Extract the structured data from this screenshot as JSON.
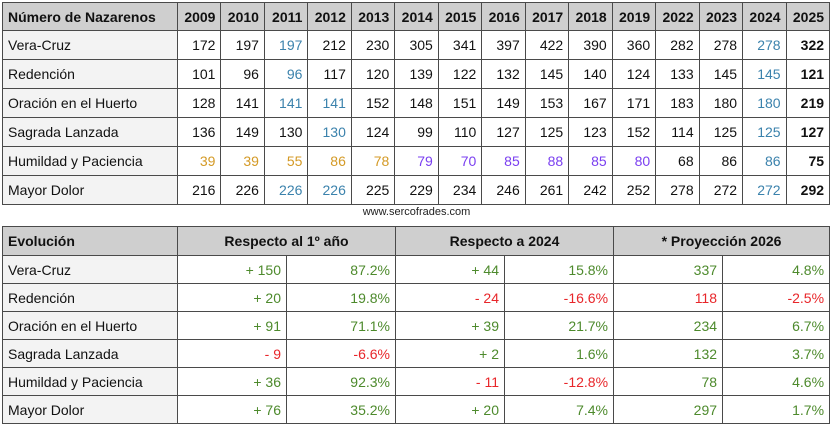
{
  "top_table": {
    "header_label": "Número de Nazarenos",
    "years": [
      "2009",
      "2010",
      "2011",
      "2012",
      "2013",
      "2014",
      "2015",
      "2016",
      "2017",
      "2018",
      "2019",
      "2022",
      "2023",
      "2024",
      "2025"
    ],
    "rows": [
      {
        "name": "Vera-Cruz",
        "values": [
          "172",
          "197",
          "197",
          "212",
          "230",
          "305",
          "341",
          "397",
          "422",
          "390",
          "360",
          "282",
          "278",
          "278",
          "322"
        ],
        "colors": [
          "black",
          "black",
          "blue",
          "black",
          "black",
          "black",
          "black",
          "black",
          "black",
          "black",
          "black",
          "black",
          "black",
          "blue",
          "black"
        ]
      },
      {
        "name": "Redención",
        "values": [
          "101",
          "96",
          "96",
          "117",
          "120",
          "139",
          "122",
          "132",
          "145",
          "140",
          "124",
          "133",
          "145",
          "145",
          "121"
        ],
        "colors": [
          "black",
          "black",
          "blue",
          "black",
          "black",
          "black",
          "black",
          "black",
          "black",
          "black",
          "black",
          "black",
          "black",
          "blue",
          "black"
        ]
      },
      {
        "name": "Oración en el Huerto",
        "values": [
          "128",
          "141",
          "141",
          "141",
          "152",
          "148",
          "151",
          "149",
          "153",
          "167",
          "171",
          "183",
          "180",
          "180",
          "219"
        ],
        "colors": [
          "black",
          "black",
          "blue",
          "blue",
          "black",
          "black",
          "black",
          "black",
          "black",
          "black",
          "black",
          "black",
          "black",
          "blue",
          "black"
        ]
      },
      {
        "name": "Sagrada Lanzada",
        "values": [
          "136",
          "149",
          "130",
          "130",
          "124",
          "99",
          "110",
          "127",
          "125",
          "123",
          "152",
          "114",
          "125",
          "125",
          "127"
        ],
        "colors": [
          "black",
          "black",
          "black",
          "blue",
          "black",
          "black",
          "black",
          "black",
          "black",
          "black",
          "black",
          "black",
          "black",
          "blue",
          "black"
        ]
      },
      {
        "name": "Humildad y Paciencia",
        "values": [
          "39",
          "39",
          "55",
          "86",
          "78",
          "79",
          "70",
          "85",
          "88",
          "85",
          "80",
          "68",
          "86",
          "86",
          "75"
        ],
        "colors": [
          "orange",
          "orange",
          "orange",
          "orange",
          "orange",
          "purple",
          "purple",
          "purple",
          "purple",
          "purple",
          "purple",
          "black",
          "black",
          "blue",
          "black"
        ]
      },
      {
        "name": "Mayor Dolor",
        "values": [
          "216",
          "226",
          "226",
          "226",
          "225",
          "229",
          "234",
          "246",
          "261",
          "242",
          "252",
          "278",
          "272",
          "272",
          "292"
        ],
        "colors": [
          "black",
          "black",
          "blue",
          "blue",
          "black",
          "black",
          "black",
          "black",
          "black",
          "black",
          "black",
          "black",
          "black",
          "blue",
          "black"
        ]
      }
    ]
  },
  "credit": "www.sercofrades.com",
  "bottom_table": {
    "header_label": "Evolución",
    "groups": [
      "Respecto al 1º año",
      "Respecto a 2024",
      "* Proyección 2026"
    ],
    "rows": [
      {
        "name": "Vera-Cruz",
        "values": [
          "+ 150",
          "87.2%",
          "+ 44",
          "15.8%",
          "337",
          "4.8%"
        ],
        "colors": [
          "green",
          "green",
          "green",
          "green",
          "green",
          "green"
        ]
      },
      {
        "name": "Redención",
        "values": [
          "+ 20",
          "19.8%",
          "- 24",
          "-16.6%",
          "118",
          "-2.5%"
        ],
        "colors": [
          "green",
          "green",
          "red",
          "red",
          "red",
          "red"
        ]
      },
      {
        "name": "Oración en el Huerto",
        "values": [
          "+ 91",
          "71.1%",
          "+ 39",
          "21.7%",
          "234",
          "6.7%"
        ],
        "colors": [
          "green",
          "green",
          "green",
          "green",
          "green",
          "green"
        ]
      },
      {
        "name": "Sagrada Lanzada",
        "values": [
          "- 9",
          "-6.6%",
          "+ 2",
          "1.6%",
          "132",
          "3.7%"
        ],
        "colors": [
          "red",
          "red",
          "green",
          "green",
          "green",
          "green"
        ]
      },
      {
        "name": "Humildad y Paciencia",
        "values": [
          "+ 36",
          "92.3%",
          "- 11",
          "-12.8%",
          "78",
          "4.6%"
        ],
        "colors": [
          "green",
          "green",
          "red",
          "red",
          "green",
          "green"
        ]
      },
      {
        "name": "Mayor Dolor",
        "values": [
          "+ 76",
          "35.2%",
          "+ 20",
          "7.4%",
          "297",
          "1.7%"
        ],
        "colors": [
          "green",
          "green",
          "green",
          "green",
          "green",
          "green"
        ]
      }
    ]
  },
  "palette": {
    "blue": "#3b82ac",
    "orange": "#d49a26",
    "purple": "#7a3ff0",
    "green": "#4d8a2c",
    "red": "#e8262a",
    "black": "#111111"
  }
}
